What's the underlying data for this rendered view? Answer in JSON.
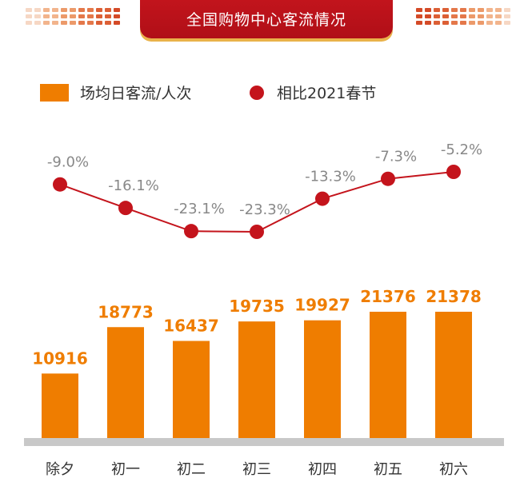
{
  "header": {
    "title": "全国购物中心客流情况"
  },
  "legend": {
    "bar_label": "场均日客流/人次",
    "dot_label": "相比2021春节"
  },
  "colors": {
    "bar": "#ef7d00",
    "line": "#c4141c",
    "banner": "#c2141c",
    "baseline": "#c8c8c8",
    "pct_label": "#888888",
    "bar_label": "#ef7d00"
  },
  "chart_data": {
    "type": "bar",
    "categories": [
      "除夕",
      "初一",
      "初二",
      "初三",
      "初四",
      "初五",
      "初六"
    ],
    "series": [
      {
        "name": "场均日客流/人次",
        "type": "bar",
        "values": [
          10916,
          18773,
          16437,
          19735,
          19927,
          21376,
          21378
        ]
      },
      {
        "name": "相比2021春节",
        "type": "line",
        "values": [
          -9.0,
          -16.1,
          -23.1,
          -23.3,
          -13.3,
          -7.3,
          -5.2
        ],
        "labels": [
          "-9.0%",
          "-16.1%",
          "-23.1%",
          "-23.3%",
          "-13.3%",
          "-7.3%",
          "-5.2%"
        ]
      }
    ],
    "bar_value_labels": [
      "10916",
      "18773",
      "16437",
      "19735",
      "19927",
      "21376",
      "21378"
    ],
    "title": "全国购物中心客流情况",
    "grid": false,
    "legend_position": "top"
  }
}
